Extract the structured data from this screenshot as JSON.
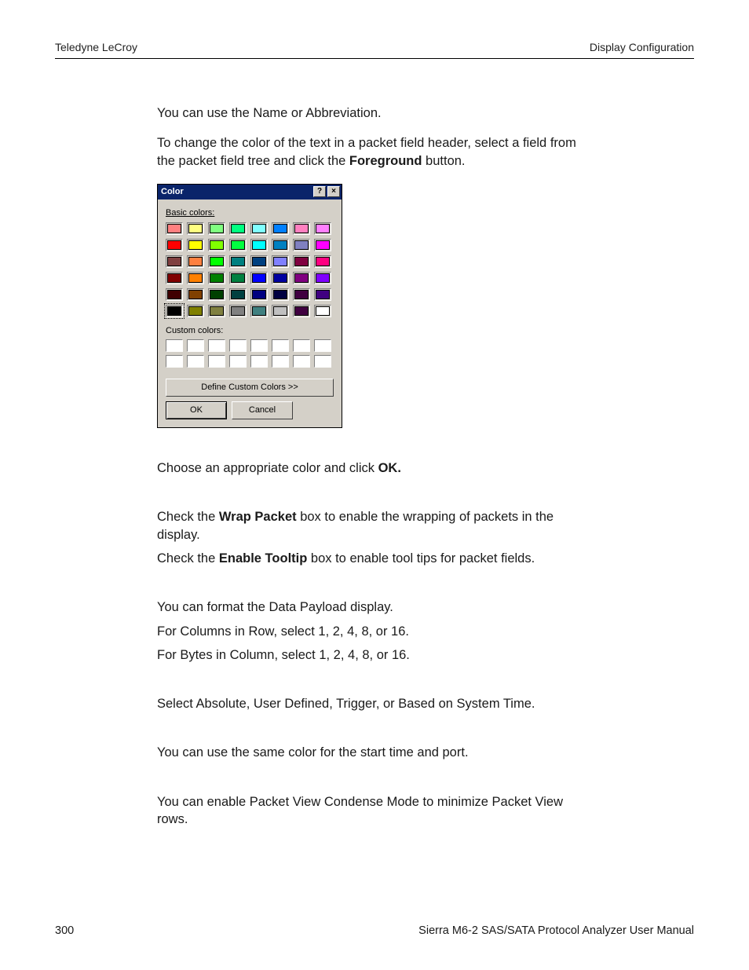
{
  "header": {
    "left": "Teledyne LeCroy",
    "right": "Display Configuration"
  },
  "body": {
    "p1": "You can use the Name or Abbreviation.",
    "p2a": "To change the color of the text in a packet field header, select a field from the packet field tree and click the ",
    "p2b": "Foreground",
    "p2c": " button.",
    "p3a": "Choose an appropriate color and click ",
    "p3b": "OK.",
    "p4a": "Check the ",
    "p4b": "Wrap Packet",
    "p4c": " box to enable the wrapping of packets in the display.",
    "p5a": "Check the ",
    "p5b": "Enable Tooltip",
    "p5c": " box to enable tool tips for packet fields.",
    "p6": "You can format the Data Payload display.",
    "p7": "For Columns in Row, select 1, 2, 4, 8, or 16.",
    "p8": "For Bytes in Column, select 1, 2, 4, 8, or 16.",
    "p9": "Select Absolute, User Defined, Trigger, or Based on System Time.",
    "p10": "You can use the same color for the start time and port.",
    "p11": "You can enable Packet View Condense Mode to minimize Packet View rows."
  },
  "dialog": {
    "title": "Color",
    "help_glyph": "?",
    "close_glyph": "×",
    "basic_label": "Basic colors:",
    "custom_label": "Custom colors:",
    "define_label": "Define Custom Colors >>",
    "ok_label": "OK",
    "cancel_label": "Cancel",
    "selected_index": 40,
    "basic_colors": [
      "#ff8080",
      "#ffff80",
      "#80ff80",
      "#00ff80",
      "#80ffff",
      "#0080ff",
      "#ff80c0",
      "#ff80ff",
      "#ff0000",
      "#ffff00",
      "#80ff00",
      "#00ff40",
      "#00ffff",
      "#0080c0",
      "#8080c0",
      "#ff00ff",
      "#804040",
      "#ff8040",
      "#00ff00",
      "#008080",
      "#004080",
      "#8080ff",
      "#800040",
      "#ff0080",
      "#800000",
      "#ff8000",
      "#008000",
      "#008040",
      "#0000ff",
      "#0000a0",
      "#800080",
      "#8000ff",
      "#400000",
      "#804000",
      "#004000",
      "#004040",
      "#000080",
      "#000040",
      "#400040",
      "#400080",
      "#000000",
      "#808000",
      "#808040",
      "#808080",
      "#408080",
      "#c0c0c0",
      "#400040",
      "#ffffff"
    ],
    "custom_count": 16
  },
  "footer": {
    "page": "300",
    "manual": "Sierra M6-2 SAS/SATA Protocol Analyzer User Manual"
  }
}
